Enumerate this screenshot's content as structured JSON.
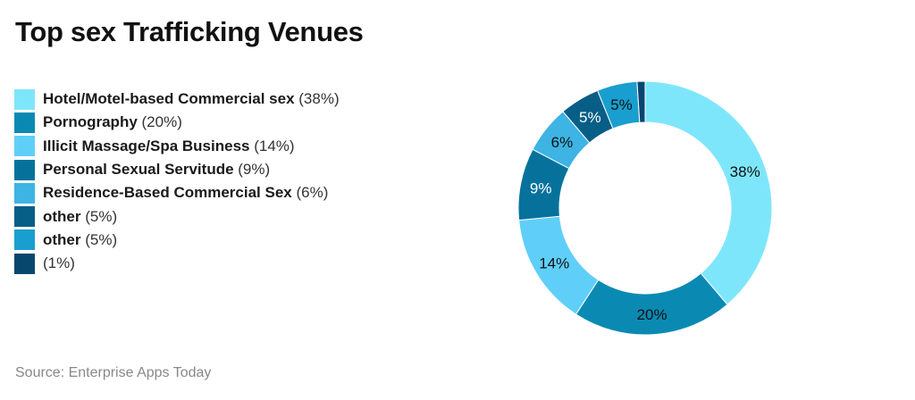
{
  "title": "Top sex Trafficking Venues",
  "source": "Source: Enterprise Apps Today",
  "legend": [
    {
      "label": "Hotel/Motel-based Commercial sex",
      "value": " (38%)",
      "color": "#7ee6fb"
    },
    {
      "label": "Pornography",
      "value": " (20%)",
      "color": "#0a8ab3"
    },
    {
      "label": "Illicit Massage/Spa Business",
      "value": " (14%)",
      "color": "#5fcffa"
    },
    {
      "label": "Personal Sexual Servitude",
      "value": " (9%)",
      "color": "#06729c"
    },
    {
      "label": "Residence-Based Commercial Sex",
      "value": " (6%)",
      "color": "#3db4e4"
    },
    {
      "label": "other",
      "value": " (5%)",
      "color": "#075e86"
    },
    {
      "label": "other",
      "value": " (5%)",
      "color": "#189fcf"
    },
    {
      "label": "",
      "value": "(1%)",
      "color": "#07466d"
    }
  ],
  "chart_data": {
    "type": "pie",
    "subtype": "donut",
    "title": "Top sex Trafficking Venues",
    "categories": [
      "Hotel/Motel-based Commercial sex",
      "Pornography",
      "Illicit Massage/Spa Business",
      "Personal Sexual Servitude",
      "Residence-Based Commercial Sex",
      "other",
      "other",
      ""
    ],
    "values": [
      38,
      20,
      14,
      9,
      6,
      5,
      5,
      1
    ],
    "labels": [
      "38%",
      "20%",
      "14%",
      "9%",
      "6%",
      "5%",
      "5%",
      ""
    ],
    "colors": [
      "#7ee6fb",
      "#0a8ab3",
      "#5fcffa",
      "#06729c",
      "#3db4e4",
      "#075e86",
      "#189fcf",
      "#07466d"
    ],
    "label_colors": [
      "#111",
      "#111",
      "#111",
      "#fff",
      "#111",
      "#fff",
      "#111",
      "#fff"
    ],
    "legend_position": "left",
    "source": "Source: Enterprise Apps Today"
  }
}
